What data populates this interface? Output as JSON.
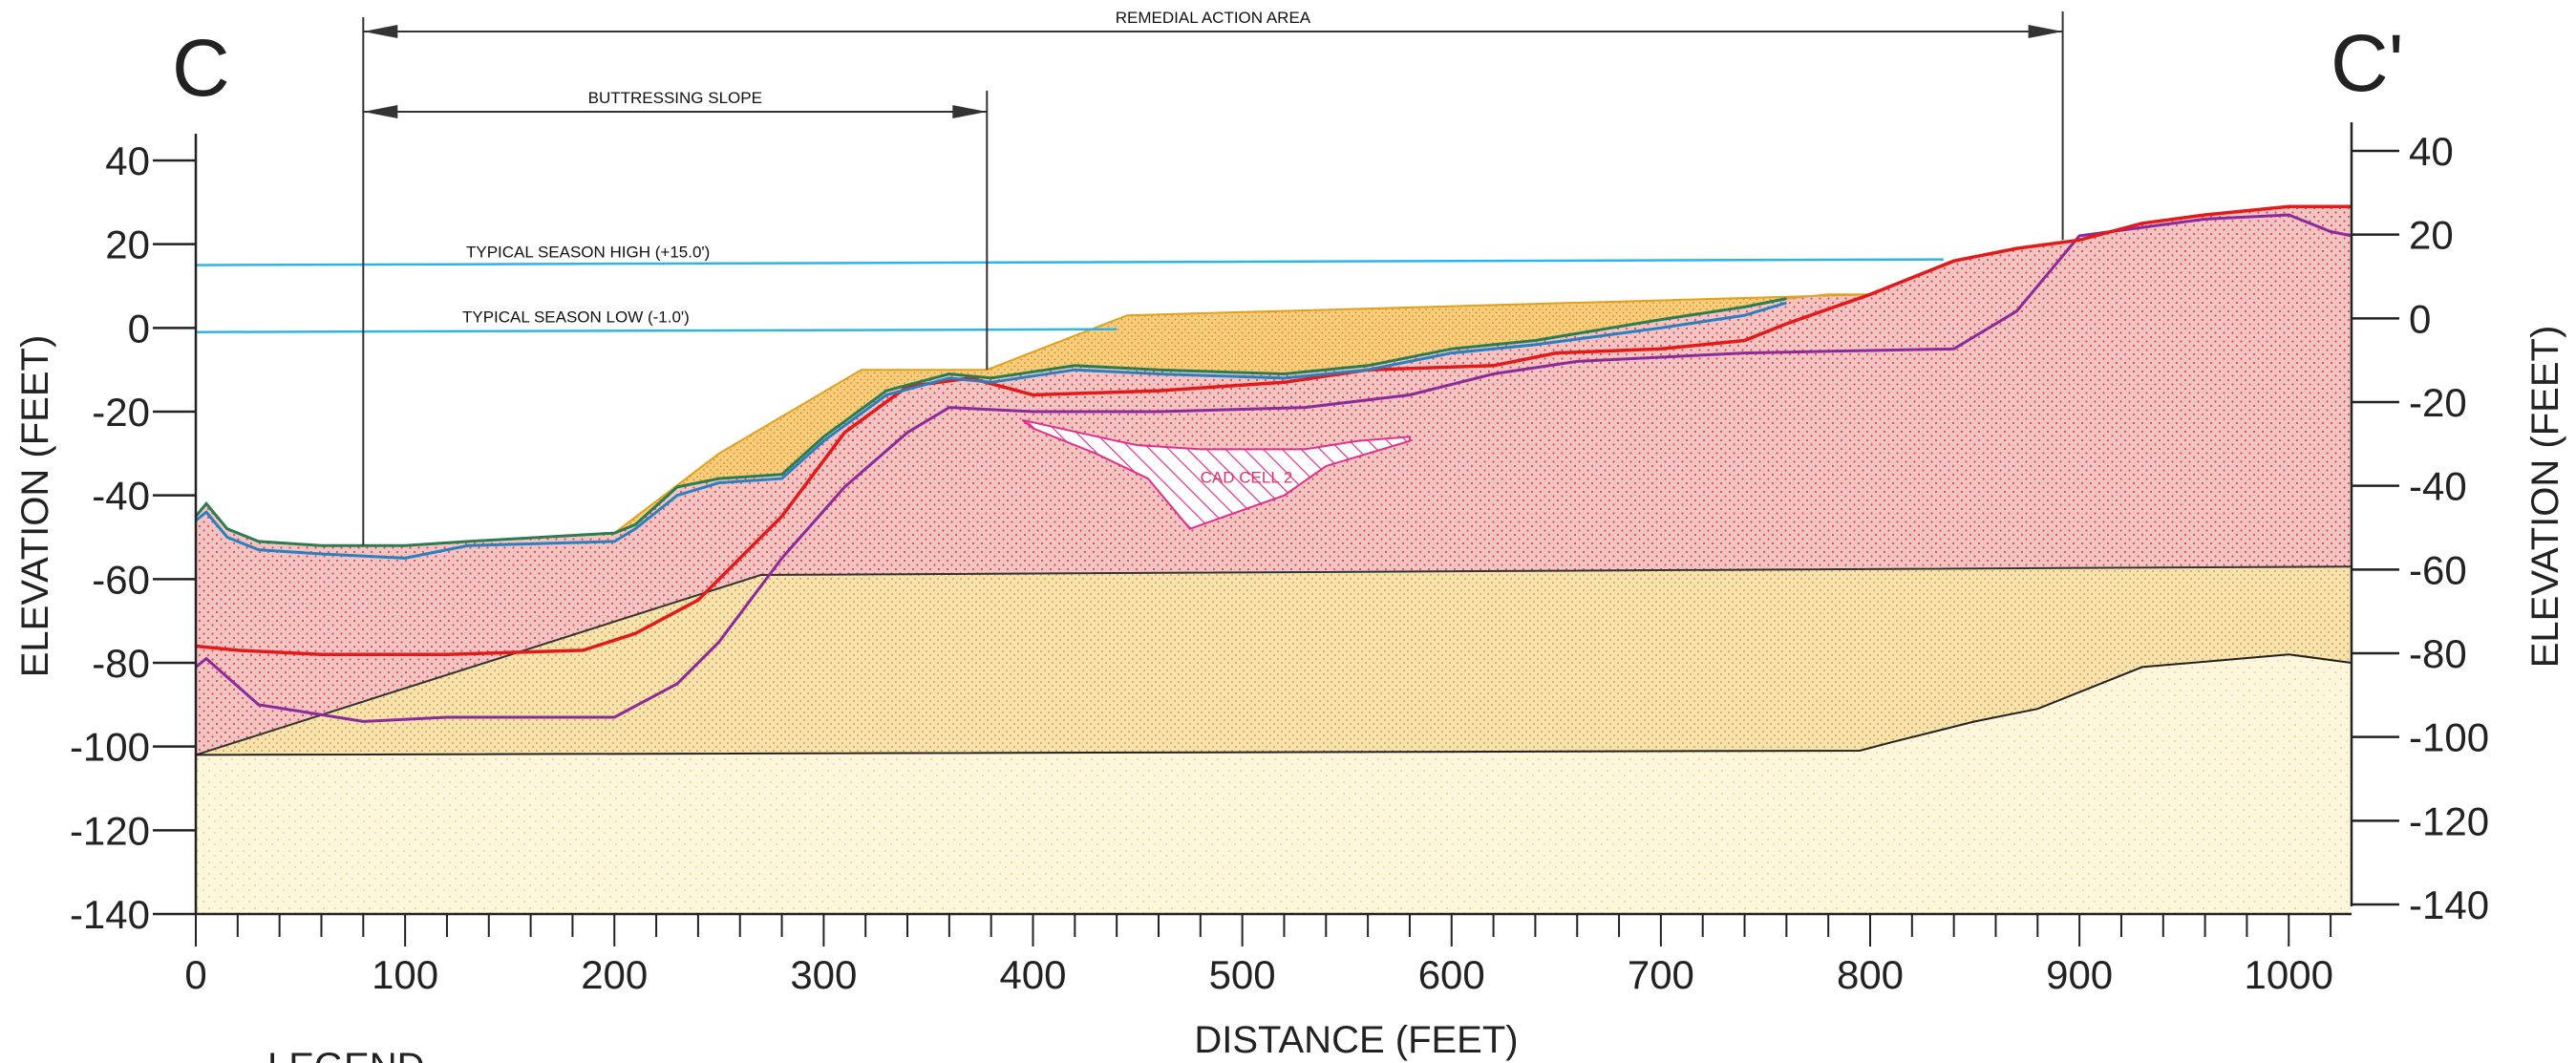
{
  "section": {
    "left_label": "C",
    "right_label": "C'"
  },
  "annotations": {
    "remedial_action_area": "REMEDIAL ACTION AREA",
    "buttressing_slope": "BUTTRESSING SLOPE",
    "season_high": "TYPICAL SEASON HIGH (+15.0')",
    "season_low": "TYPICAL SEASON LOW (-1.0')",
    "cad_cell": "CAD CELL 2",
    "legend_title": "LEGEND"
  },
  "colors": {
    "water_line": "#2bb5e6",
    "cap_fill": "#f0b030",
    "sediment_fill": "#f2b7b7",
    "sediment_dots": "#e24a4a",
    "clay_fill": "#f5e3b0",
    "sand_fill": "#fbf5d4",
    "red_line": "#e31a1a",
    "purple_line": "#8b2a9a",
    "green_line": "#2a7d4f",
    "blue_line": "#2a7fc0",
    "cad_hatch": "#e0308a"
  },
  "chart_data": {
    "type": "line",
    "xlabel": "DISTANCE (FEET)",
    "ylabel": "ELEVATION (FEET)",
    "xlim": [
      0,
      1030
    ],
    "ylim": [
      -140,
      40
    ],
    "x_ticks": [
      0,
      100,
      200,
      300,
      400,
      500,
      600,
      700,
      800,
      900,
      1000
    ],
    "y_ticks": [
      40,
      20,
      0,
      -20,
      -40,
      -60,
      -80,
      -100,
      -120,
      -140
    ],
    "y_ticks_right": [
      40,
      20,
      0,
      -20,
      -40,
      -60,
      -80,
      -100,
      -120,
      -140
    ],
    "remedial_action_area_x": [
      80,
      892
    ],
    "buttressing_slope_x": [
      80,
      378
    ],
    "water_levels": [
      {
        "label": "TYPICAL SEASON HIGH (+15.0')",
        "elevation": 15
      },
      {
        "label": "TYPICAL SEASON LOW (-1.0')",
        "elevation": -1
      }
    ],
    "series": [
      {
        "key": "existing_surface_green",
        "x": [
          0,
          5,
          15,
          30,
          60,
          100,
          130,
          200,
          210,
          230,
          250,
          280,
          300,
          330,
          360,
          380,
          420,
          460,
          520,
          560,
          600,
          640,
          700,
          740,
          760
        ],
        "y": [
          -45,
          -42,
          -48,
          -51,
          -52,
          -52,
          -51,
          -49,
          -47,
          -38,
          -36,
          -35,
          -26,
          -15,
          -11,
          -12,
          -9,
          -10,
          -11,
          -9,
          -5,
          -3,
          2,
          5,
          7
        ]
      },
      {
        "key": "existing_surface_blue",
        "x": [
          0,
          5,
          15,
          30,
          60,
          100,
          130,
          200,
          210,
          230,
          250,
          280,
          300,
          330,
          360,
          380,
          420,
          460,
          520,
          560,
          600,
          640,
          700,
          740,
          760
        ],
        "y": [
          -46,
          -44,
          -50,
          -53,
          -54,
          -55,
          -52,
          -51,
          -48,
          -40,
          -37,
          -36,
          -27,
          -16,
          -12,
          -13,
          -10,
          -11,
          -12,
          -10,
          -6,
          -4,
          0,
          3,
          6
        ]
      },
      {
        "key": "red_boundary",
        "x": [
          0,
          20,
          60,
          120,
          185,
          210,
          240,
          280,
          310,
          340,
          370,
          400,
          460,
          520,
          560,
          620,
          650,
          700,
          740,
          760,
          800,
          840,
          870,
          900,
          930,
          960,
          1000,
          1030
        ],
        "y": [
          -76,
          -77,
          -78,
          -78,
          -77,
          -73,
          -65,
          -45,
          -25,
          -14,
          -12,
          -16,
          -15,
          -13,
          -10,
          -9,
          -6,
          -5,
          -3,
          1,
          8,
          16,
          19,
          21,
          25,
          27,
          29,
          29
        ]
      },
      {
        "key": "purple_boundary",
        "x": [
          0,
          5,
          30,
          80,
          120,
          200,
          230,
          250,
          280,
          310,
          340,
          360,
          400,
          460,
          530,
          580,
          620,
          660,
          740,
          840,
          870,
          900,
          930,
          960,
          1000,
          1020,
          1030
        ],
        "y": [
          -81,
          -79,
          -90,
          -94,
          -93,
          -93,
          -85,
          -75,
          -55,
          -38,
          -25,
          -19,
          -20,
          -20,
          -19,
          -16,
          -11,
          -8,
          -6,
          -5,
          4,
          22,
          24,
          26,
          27,
          23,
          22
        ]
      },
      {
        "key": "cap_surface",
        "x": [
          200,
          250,
          318,
          378,
          445,
          800
        ],
        "y": [
          -49,
          -30,
          -10,
          -10,
          3,
          8
        ]
      },
      {
        "key": "clay_top",
        "x": [
          0,
          270,
          1030
        ],
        "y": [
          -102,
          -59,
          -57
        ]
      },
      {
        "key": "sand_top",
        "x": [
          0,
          795,
          810,
          850,
          880,
          930,
          1000,
          1030
        ],
        "y": [
          -102,
          -101,
          -99,
          -94,
          -91,
          -81,
          -78,
          -80
        ]
      }
    ],
    "cad_cell_polygon": {
      "label": "CAD CELL 2",
      "x": [
        395,
        440,
        450,
        480,
        530,
        555,
        580,
        580,
        540,
        520,
        475,
        455,
        430,
        400
      ],
      "y": [
        -22,
        -27,
        -28,
        -29,
        -29,
        -27,
        -26,
        -27,
        -33,
        -40,
        -48,
        -36,
        -30,
        -24
      ]
    }
  }
}
